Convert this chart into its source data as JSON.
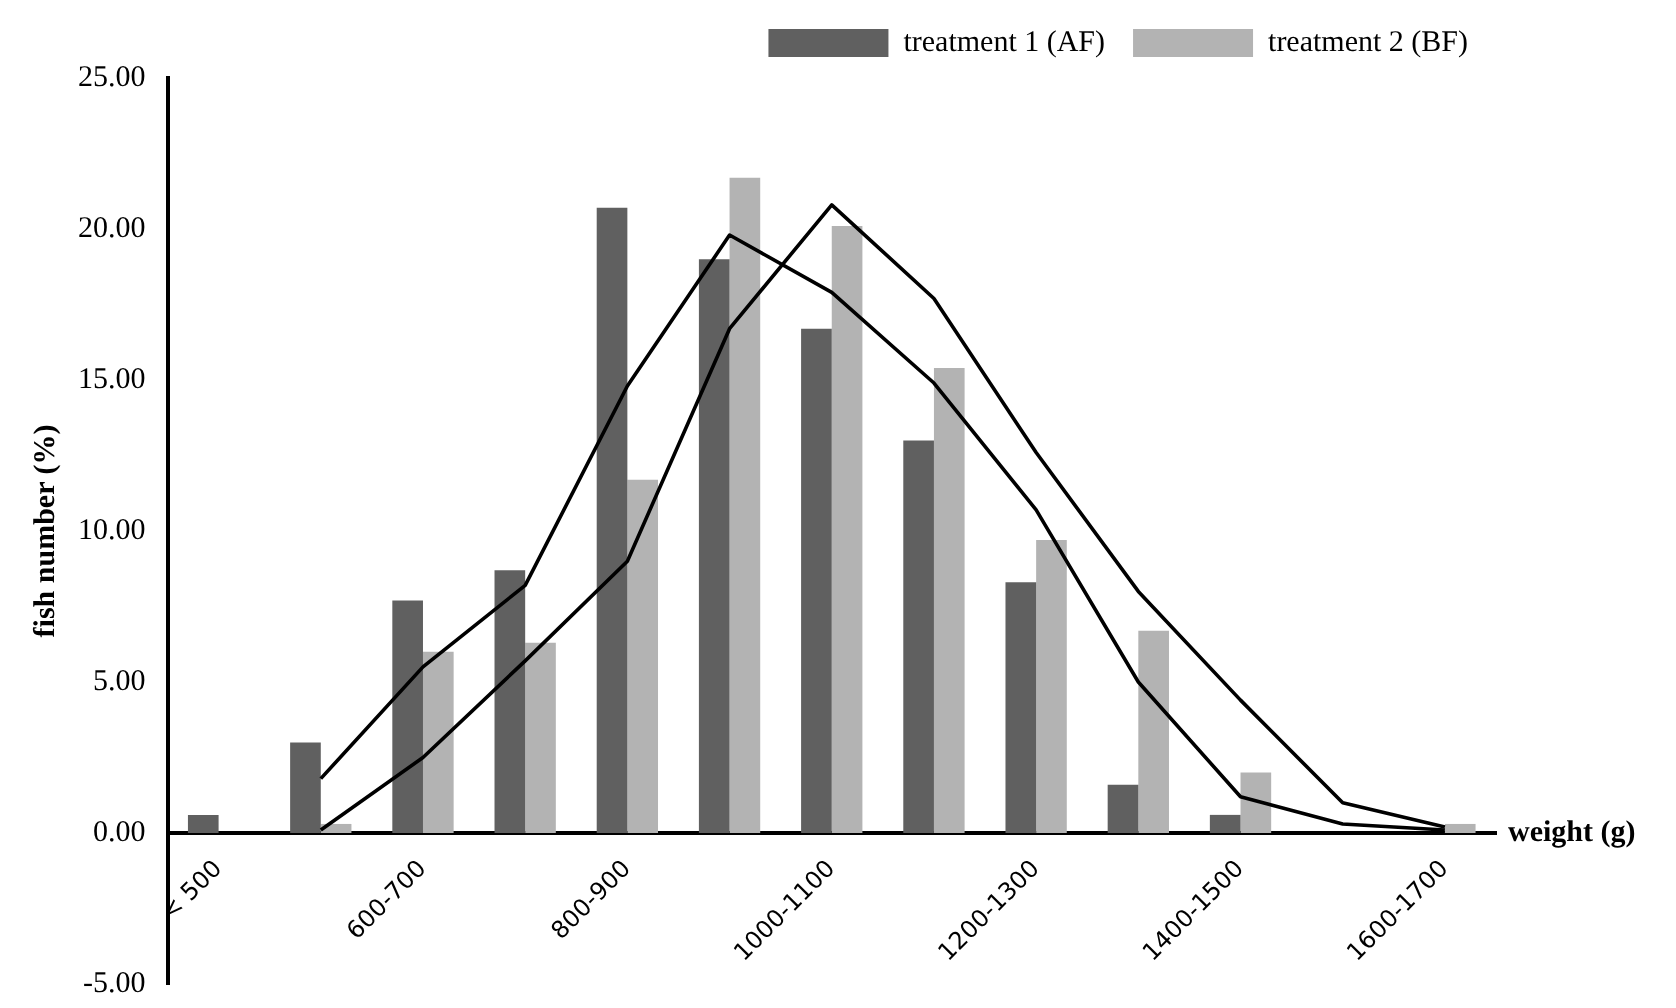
{
  "chart_data": {
    "type": "bar",
    "xlabel": "weight (g)",
    "ylabel": "fish number (%)",
    "categories": [
      "< 500",
      null,
      "600-700",
      null,
      "800-900",
      null,
      "1000-1100",
      null,
      "1200-1300",
      null,
      "1400-1500",
      null,
      "1600-1700"
    ],
    "series": [
      {
        "name": "treatment 1 (AF)",
        "color": "#606060",
        "values": [
          0.6,
          3.0,
          7.7,
          8.7,
          20.7,
          19.0,
          16.7,
          13.0,
          8.3,
          1.6,
          0.6,
          0,
          0
        ]
      },
      {
        "name": "treatment 2 (BF)",
        "color": "#b3b3b3",
        "values": [
          0,
          0.3,
          6.0,
          6.3,
          11.7,
          21.7,
          20.1,
          15.4,
          9.7,
          6.7,
          2.0,
          0,
          0.3
        ]
      },
      {
        "type": "line",
        "color": "#000000",
        "values": [
          null,
          1.8,
          5.5,
          8.2,
          14.8,
          19.8,
          17.9,
          14.9,
          10.7,
          5.0,
          1.2,
          0.3,
          0.1
        ]
      },
      {
        "type": "line",
        "color": "#000000",
        "values": [
          null,
          0.1,
          2.5,
          5.7,
          9.0,
          16.7,
          20.8,
          17.7,
          12.6,
          8.0,
          4.4,
          1.0,
          0.2
        ]
      }
    ],
    "ylim": [
      -5,
      25
    ],
    "yticks": [
      {
        "value": -5,
        "label": "-5.00"
      },
      {
        "value": 0,
        "label": "0.00"
      },
      {
        "value": 5,
        "label": "5.00"
      },
      {
        "value": 10,
        "label": "10.00"
      },
      {
        "value": 15,
        "label": "15.00"
      },
      {
        "value": 20,
        "label": "20.00"
      },
      {
        "value": 25,
        "label": "25.00"
      }
    ],
    "grid": false,
    "legend": "top right",
    "marker": "none",
    "line_style": "solid"
  }
}
